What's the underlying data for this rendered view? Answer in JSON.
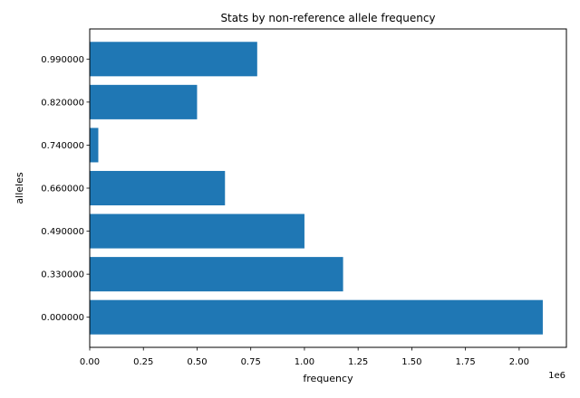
{
  "chart_data": {
    "type": "bar",
    "orientation": "horizontal",
    "title": "Stats by non-reference allele frequency",
    "xlabel": "frequency",
    "ylabel": "alleles",
    "x_offset_text": "1e6",
    "x_scale_factor": 1000000,
    "categories": [
      "0.000000",
      "0.330000",
      "0.490000",
      "0.660000",
      "0.740000",
      "0.820000",
      "0.990000"
    ],
    "values": [
      2110000,
      1180000,
      1000000,
      630000,
      40000,
      500000,
      780000
    ],
    "xlim": [
      0,
      2220000
    ],
    "xticks": [
      0,
      250000,
      500000,
      750000,
      1000000,
      1250000,
      1500000,
      1750000,
      2000000
    ],
    "xtick_labels": [
      "0.00",
      "0.25",
      "0.50",
      "0.75",
      "1.00",
      "1.25",
      "1.50",
      "1.75",
      "2.00"
    ],
    "bar_color": "#1f77b4",
    "grid": false,
    "legend": "none"
  }
}
